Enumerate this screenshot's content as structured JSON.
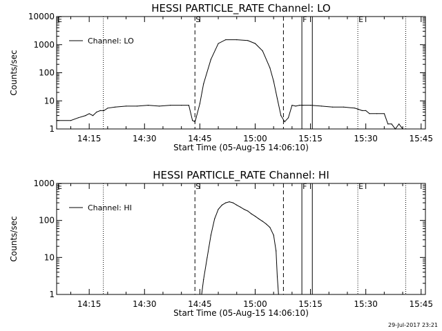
{
  "footer": {
    "timestamp": "29-Jul-2017 23:21"
  },
  "chart_data": [
    {
      "type": "line",
      "title": "HESSI PARTICLE_RATE Channel: LO",
      "xlabel": "Start Time (05-Aug-15 14:06:10)",
      "ylabel": "Counts/sec",
      "yscale": "log",
      "ylim": [
        1,
        10000
      ],
      "xlim": [
        "14:06:10",
        "15:46:10"
      ],
      "x_ticks": [
        "14:15",
        "14:30",
        "14:45",
        "15:00",
        "15:15",
        "15:30",
        "15:45"
      ],
      "y_ticks": [
        "1",
        "10",
        "100",
        "1000",
        "10000"
      ],
      "legend": {
        "position": "top-left",
        "entries": [
          "Channel: LO"
        ]
      },
      "grid": false,
      "markers": [
        {
          "time": "14:06:10",
          "style": "dotted",
          "label": "E"
        },
        {
          "time": "14:18:50",
          "style": "dotted",
          "label": ""
        },
        {
          "time": "14:43:40",
          "style": "dashed",
          "label": "S"
        },
        {
          "time": "15:07:40",
          "style": "dashed",
          "label": ""
        },
        {
          "time": "15:12:40",
          "style": "solid",
          "label": "F"
        },
        {
          "time": "15:15:30",
          "style": "solid",
          "label": ""
        },
        {
          "time": "15:27:50",
          "style": "dotted",
          "label": "E"
        },
        {
          "time": "15:40:50",
          "style": "dotted",
          "label": ""
        }
      ],
      "series": [
        {
          "name": "Channel: LO",
          "x": [
            "14:06:10",
            "14:10:00",
            "14:12:00",
            "14:14:00",
            "14:15:00",
            "14:16:00",
            "14:17:00",
            "14:18:00",
            "14:19:00",
            "14:20:00",
            "14:22:00",
            "14:25:00",
            "14:28:00",
            "14:31:00",
            "14:34:00",
            "14:37:00",
            "14:40:00",
            "14:42:00",
            "14:43:00",
            "14:43:40",
            "14:44:00",
            "14:45:00",
            "14:46:00",
            "14:48:00",
            "14:50:00",
            "14:52:00",
            "14:55:00",
            "14:58:00",
            "15:00:00",
            "15:02:00",
            "15:04:00",
            "15:05:00",
            "15:06:00",
            "15:07:00",
            "15:08:00",
            "15:09:00",
            "15:10:00",
            "15:11:00",
            "15:12:00",
            "15:13:00",
            "15:15:00",
            "15:18:00",
            "15:21:00",
            "15:24:00",
            "15:27:00",
            "15:28:00",
            "15:29:00",
            "15:30:00",
            "15:31:00",
            "15:33:00",
            "15:35:00",
            "15:36:00",
            "15:37:00",
            "15:38:00",
            "15:39:00",
            "15:40:00"
          ],
          "values": [
            2,
            2,
            2.5,
            3,
            3.5,
            3,
            4,
            4.5,
            4.5,
            5.5,
            6,
            6.5,
            6.5,
            7,
            6.5,
            7,
            7,
            7,
            2,
            1.8,
            2.5,
            8,
            40,
            300,
            1100,
            1500,
            1500,
            1400,
            1100,
            600,
            150,
            50,
            12,
            3,
            1.8,
            2.5,
            7,
            6.5,
            7,
            7,
            7,
            6.5,
            6,
            6,
            5.5,
            5,
            4.5,
            4.5,
            3.5,
            3.5,
            3.5,
            1.5,
            1.5,
            1,
            1.5,
            1
          ]
        }
      ]
    },
    {
      "type": "line",
      "title": "HESSI PARTICLE_RATE Channel: HI",
      "xlabel": "Start Time (05-Aug-15 14:06:10)",
      "ylabel": "Counts/sec",
      "yscale": "log",
      "ylim": [
        1,
        1000
      ],
      "xlim": [
        "14:06:10",
        "15:46:10"
      ],
      "x_ticks": [
        "14:15",
        "14:30",
        "14:45",
        "15:00",
        "15:15",
        "15:30",
        "15:45"
      ],
      "y_ticks": [
        "1",
        "10",
        "100",
        "1000"
      ],
      "legend": {
        "position": "top-left",
        "entries": [
          "Channel: HI"
        ]
      },
      "grid": false,
      "markers": [
        {
          "time": "14:06:10",
          "style": "dotted",
          "label": "E"
        },
        {
          "time": "14:18:50",
          "style": "dotted",
          "label": ""
        },
        {
          "time": "14:43:40",
          "style": "dashed",
          "label": "S"
        },
        {
          "time": "15:07:40",
          "style": "dashed",
          "label": ""
        },
        {
          "time": "15:12:40",
          "style": "solid",
          "label": "F"
        },
        {
          "time": "15:15:30",
          "style": "solid",
          "label": ""
        },
        {
          "time": "15:27:50",
          "style": "dotted",
          "label": "E"
        },
        {
          "time": "15:40:50",
          "style": "dotted",
          "label": ""
        }
      ],
      "series": [
        {
          "name": "Channel: HI",
          "x": [
            "14:45:30",
            "14:46:00",
            "14:47:00",
            "14:48:00",
            "14:49:00",
            "14:50:00",
            "14:51:00",
            "14:52:00",
            "14:53:00",
            "14:54:00",
            "14:55:00",
            "14:56:00",
            "14:57:00",
            "14:58:00",
            "14:59:00",
            "15:00:00",
            "15:01:00",
            "15:02:00",
            "15:03:00",
            "15:04:00",
            "15:05:00",
            "15:05:40",
            "15:06:00",
            "15:06:20"
          ],
          "values": [
            1,
            2.5,
            10,
            40,
            110,
            200,
            260,
            300,
            320,
            300,
            260,
            230,
            200,
            180,
            150,
            130,
            110,
            95,
            80,
            65,
            40,
            15,
            3,
            1
          ]
        }
      ]
    }
  ]
}
